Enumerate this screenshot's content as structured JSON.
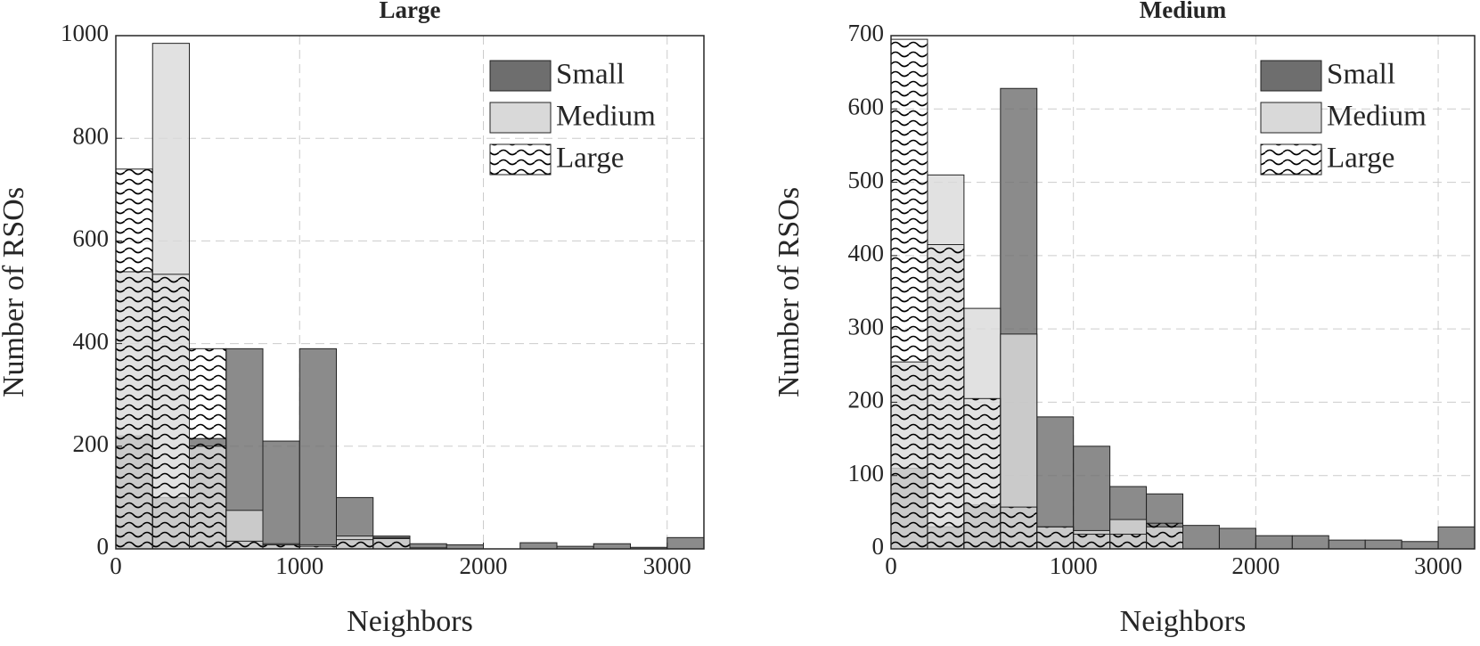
{
  "chart_data": [
    {
      "type": "histogram",
      "title": "Large",
      "xlabel": "Neighbors",
      "ylabel": "Number of RSOs",
      "bins": [
        0,
        200,
        400,
        600,
        800,
        1000,
        1200,
        1400,
        1600,
        1800,
        2000,
        2200,
        2400,
        2600,
        2800,
        3000,
        3200
      ],
      "series": [
        {
          "name": "Small",
          "color": "#6e6e6e",
          "values": [
            220,
            100,
            215,
            390,
            210,
            390,
            100,
            25,
            10,
            8,
            0,
            12,
            5,
            10,
            3,
            22
          ]
        },
        {
          "name": "Medium",
          "color": "#d9d9d9",
          "values": [
            540,
            985,
            200,
            75,
            10,
            8,
            25,
            20,
            2,
            0,
            0,
            0,
            0,
            0,
            0,
            0
          ]
        },
        {
          "name": "Large",
          "color": "#000000",
          "pattern": "wavy",
          "values": [
            740,
            535,
            390,
            15,
            8,
            5,
            18,
            22,
            0,
            0,
            0,
            0,
            0,
            0,
            0,
            0
          ]
        }
      ],
      "xlim": [
        0,
        3200
      ],
      "xticks": [
        0,
        1000,
        2000,
        3000
      ],
      "ylim": [
        0,
        1000
      ],
      "yticks": [
        0,
        200,
        400,
        600,
        800,
        1000
      ],
      "grid": true,
      "legend": "upper right"
    },
    {
      "type": "histogram",
      "title": "Medium",
      "xlabel": "Neighbors",
      "ylabel": "Number of RSOs",
      "bins": [
        0,
        200,
        400,
        600,
        800,
        1000,
        1200,
        1400,
        1600,
        1800,
        2000,
        2200,
        2400,
        2600,
        2800,
        3000,
        3200
      ],
      "series": [
        {
          "name": "Small",
          "color": "#6e6e6e",
          "values": [
            110,
            30,
            60,
            628,
            180,
            140,
            85,
            75,
            32,
            28,
            18,
            18,
            12,
            12,
            10,
            30
          ]
        },
        {
          "name": "Medium",
          "color": "#d9d9d9",
          "values": [
            255,
            510,
            328,
            293,
            30,
            25,
            40,
            30,
            0,
            0,
            0,
            0,
            0,
            0,
            0,
            0
          ]
        },
        {
          "name": "Large",
          "color": "#000000",
          "pattern": "wavy",
          "values": [
            695,
            415,
            205,
            57,
            30,
            20,
            20,
            35,
            0,
            0,
            0,
            0,
            0,
            0,
            0,
            0
          ]
        }
      ],
      "xlim": [
        0,
        3200
      ],
      "xticks": [
        0,
        1000,
        2000,
        3000
      ],
      "ylim": [
        0,
        700
      ],
      "yticks": [
        0,
        100,
        200,
        300,
        400,
        500,
        600,
        700
      ],
      "grid": true,
      "legend": "upper right"
    }
  ]
}
